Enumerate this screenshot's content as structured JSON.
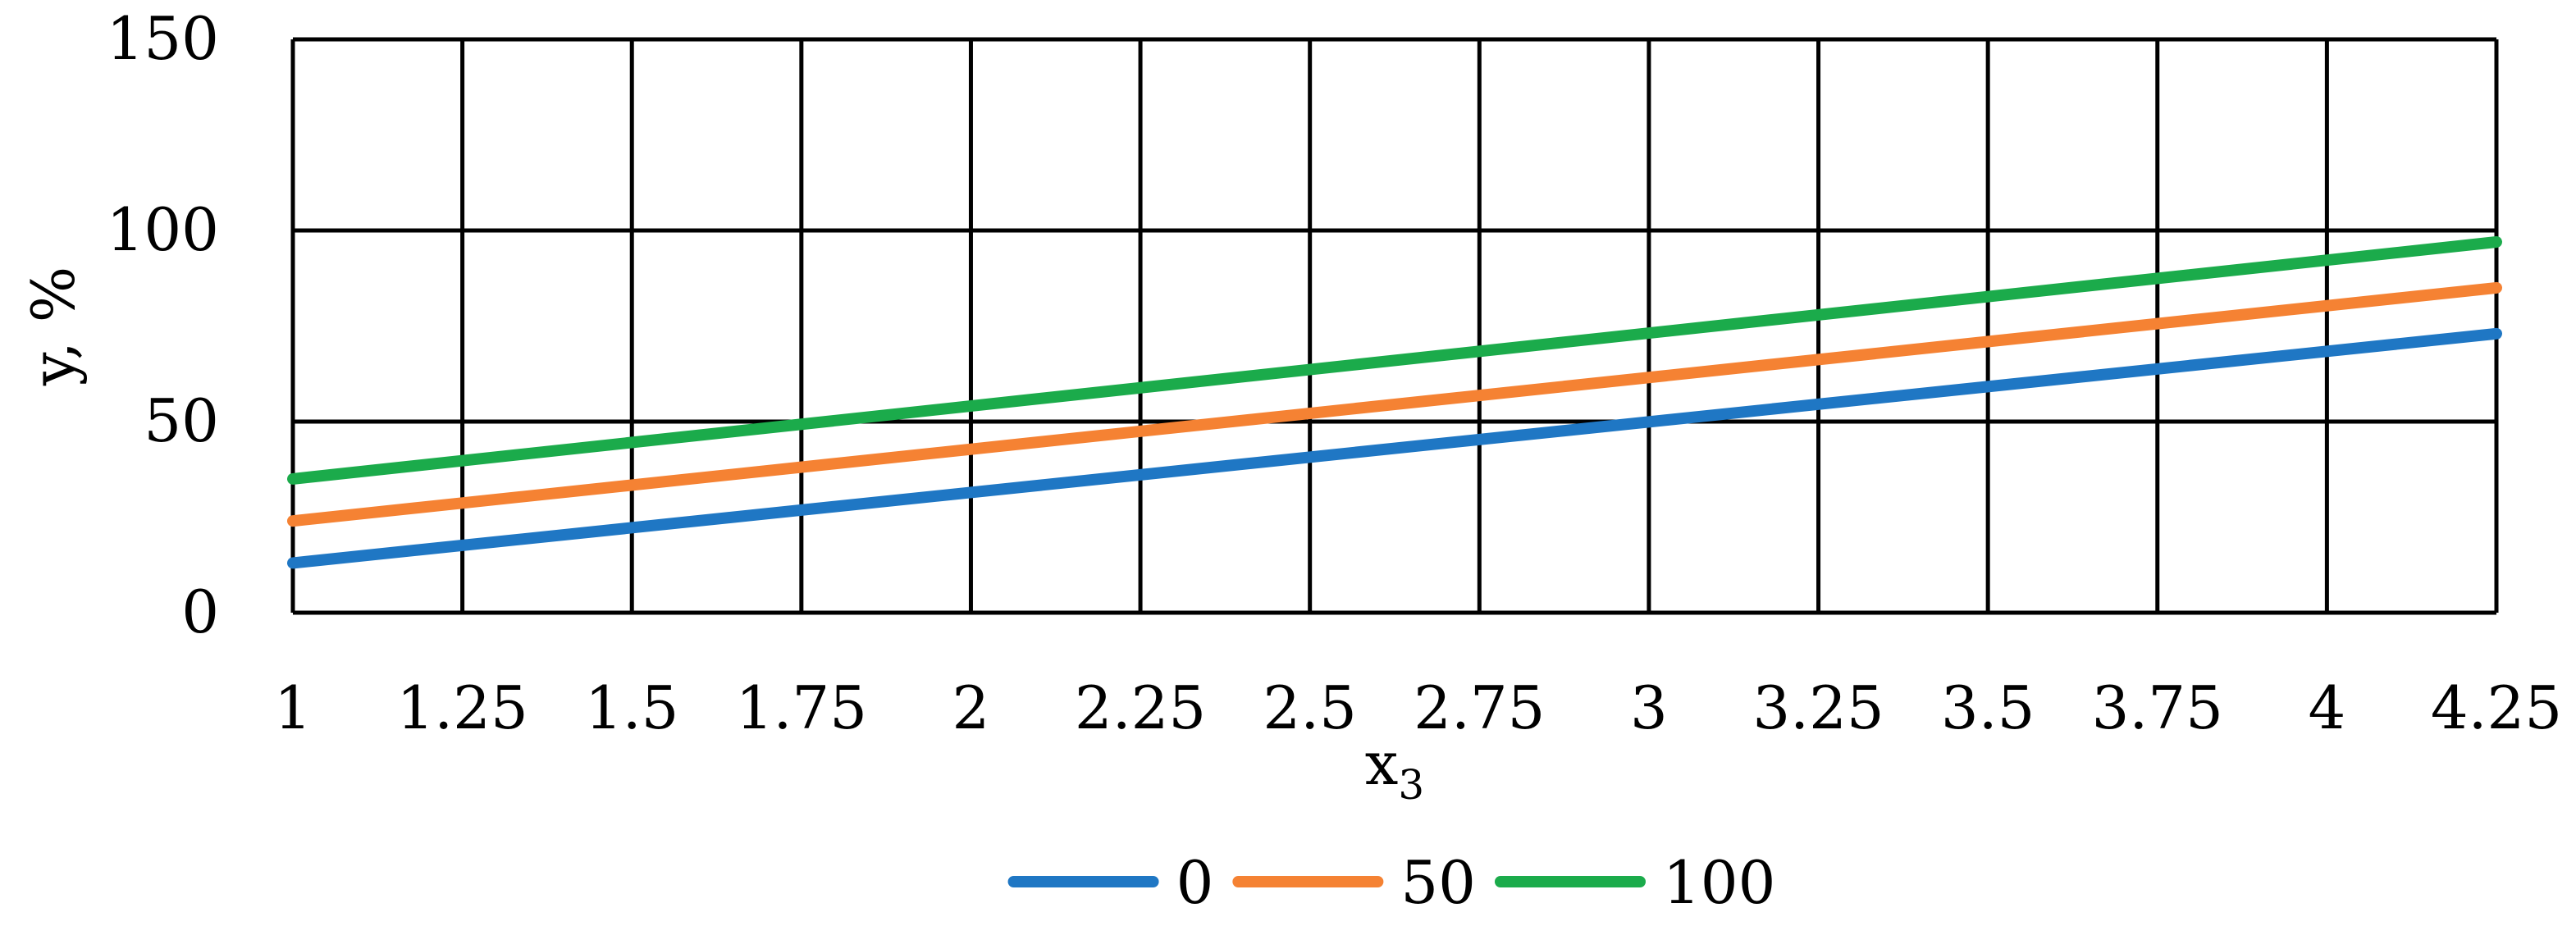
{
  "chart_data": {
    "type": "line",
    "title": "",
    "xlabel": "x",
    "xlabel_subscript": "3",
    "ylabel": "y, %",
    "xlim": [
      1,
      4.25
    ],
    "ylim": [
      0,
      150
    ],
    "x_ticks": [
      "1",
      "1.25",
      "1.5",
      "1.75",
      "2",
      "2.25",
      "2.5",
      "2.75",
      "3",
      "3.25",
      "3.5",
      "3.75",
      "4",
      "4.25"
    ],
    "y_ticks": [
      "0",
      "50",
      "100",
      "150"
    ],
    "grid": true,
    "legend_position": "bottom",
    "series": [
      {
        "name": "0",
        "color": "#1f77c4",
        "x": [
          1,
          4.25
        ],
        "y": [
          13,
          73
        ]
      },
      {
        "name": "50",
        "color": "#f58233",
        "x": [
          1,
          4.25
        ],
        "y": [
          24,
          85
        ]
      },
      {
        "name": "100",
        "color": "#1bab4b",
        "x": [
          1,
          4.25
        ],
        "y": [
          35,
          97
        ]
      }
    ]
  }
}
